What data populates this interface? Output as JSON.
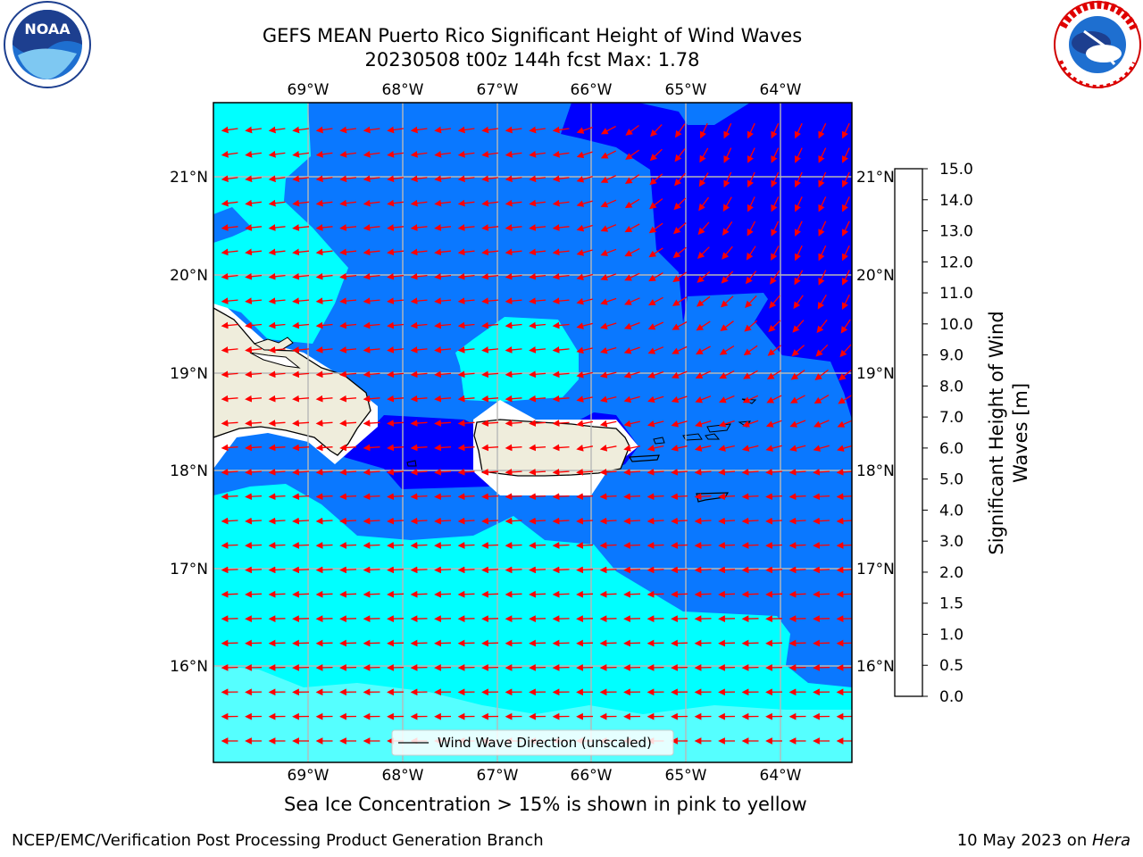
{
  "title": {
    "line1": "GEFS MEAN Puerto Rico Significant Height of Wind Waves",
    "line2": "20230508 t00z 144h fcst   Max: 1.78"
  },
  "map": {
    "lon_labels": [
      "69°W",
      "68°W",
      "67°W",
      "66°W",
      "65°W",
      "64°W"
    ],
    "lat_labels": [
      "21°N",
      "20°N",
      "19°N",
      "18°N",
      "17°N",
      "16°N"
    ],
    "legend_label": "Wind Wave Direction (unscaled)",
    "arrow_color": "#ff0000"
  },
  "colorbar": {
    "label_line1": "Significant Height of Wind",
    "label_line2": "Waves [m]",
    "ticks": [
      "0.0",
      "0.5",
      "1.0",
      "1.5",
      "2.0",
      "3.0",
      "4.0",
      "5.0",
      "6.0",
      "7.0",
      "8.0",
      "9.0",
      "10.0",
      "11.0",
      "12.0",
      "13.0",
      "14.0",
      "15.0"
    ],
    "colors": [
      "#0000ff",
      "#0a78ff",
      "#00ffff",
      "#55ffff",
      "#a8ffff",
      "#50f07a",
      "#00e000",
      "#33cc00",
      "#88dd00",
      "#ccee00",
      "#ffff00",
      "#ffdd00",
      "#ffbb00",
      "#ff8800",
      "#ff6600",
      "#ff3300",
      "#ff0000"
    ]
  },
  "logos": {
    "noaa_text": "NOAA",
    "noaa_ring_text": "NATIONAL OCEANIC AND ATMOSPHERIC ADMINISTRATION · U.S. DEPARTMENT OF COMMERCE",
    "nws_ring_text": "NATIONAL WEATHER SERVICE"
  },
  "note": "Sea Ice Concentration > 15% is shown in pink to yellow",
  "footer": {
    "left": "NCEP/EMC/Verification Post Processing Product Generation Branch",
    "right_prefix": "10 May 2023 on ",
    "right_machine": "Hera"
  }
}
